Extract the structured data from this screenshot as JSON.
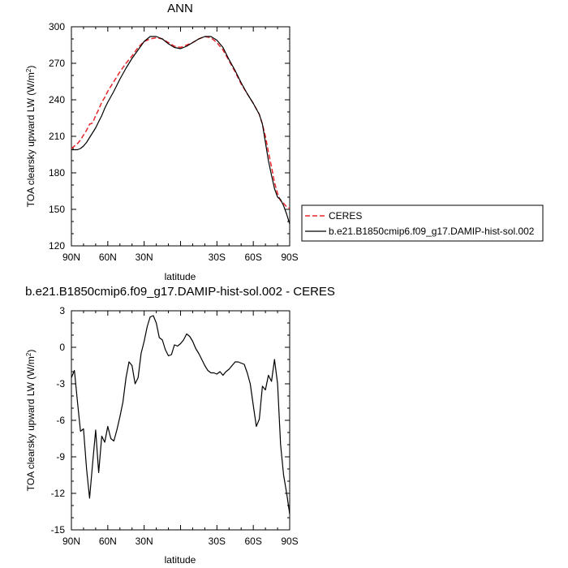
{
  "chart_data": [
    {
      "type": "line",
      "title": "ANN",
      "xlabel": "latitude",
      "ylabel": "TOA clearsky upward LW (W/m",
      "ylabel_sup": "2",
      "ylabel_close": ")",
      "xlim": [
        90,
        -90
      ],
      "ylim": [
        120,
        300
      ],
      "xticks": [
        90,
        60,
        30,
        0,
        -30,
        -60,
        -90
      ],
      "xtick_labels": [
        "90N",
        "60N",
        "30N",
        "",
        "30S",
        "60S",
        "90S"
      ],
      "yticks": [
        120,
        150,
        180,
        210,
        240,
        270,
        300
      ],
      "ytick_labels": [
        "120",
        "150",
        "180",
        "210",
        "240",
        "270",
        "300"
      ],
      "legend": {
        "placement": "right",
        "entries": [
          "CERES",
          "b.e21.B1850cmip6.f09_g17.DAMIP-hist-sol.002"
        ]
      },
      "series": [
        {
          "name": "CERES",
          "color": "#e8262b",
          "dash": true,
          "x": [
            90,
            87.5,
            85,
            82.5,
            80,
            77.5,
            75,
            72.5,
            70,
            67.5,
            65,
            62.5,
            60,
            55,
            50,
            45,
            40,
            35,
            30,
            25,
            20,
            15,
            10,
            5,
            0,
            -5,
            -10,
            -15,
            -20,
            -25,
            -30,
            -35,
            -40,
            -45,
            -50,
            -55,
            -60,
            -65,
            -67.5,
            -70,
            -72.5,
            -75,
            -77.5,
            -80,
            -82.5,
            -85,
            -87.5,
            -90
          ],
          "y": [
            200,
            202,
            204,
            207,
            211,
            215,
            220,
            221,
            227,
            232,
            238,
            242,
            247,
            255,
            263,
            270,
            276,
            283,
            288,
            290,
            291,
            290,
            287,
            284,
            283,
            285,
            287,
            290,
            292,
            291,
            287,
            281,
            272,
            263,
            253,
            245,
            237,
            228,
            220,
            210,
            197,
            185,
            172,
            163,
            157,
            155,
            152,
            151
          ]
        },
        {
          "name": "b.e21.B1850cmip6.f09_g17.DAMIP-hist-sol.002",
          "color": "#000000",
          "dash": false,
          "x": [
            90,
            87.5,
            85,
            82.5,
            80,
            77.5,
            75,
            72.5,
            70,
            67.5,
            65,
            62.5,
            60,
            55,
            50,
            45,
            40,
            35,
            30,
            25,
            20,
            15,
            10,
            5,
            0,
            -5,
            -10,
            -15,
            -20,
            -25,
            -30,
            -35,
            -40,
            -45,
            -50,
            -55,
            -60,
            -65,
            -67.5,
            -70,
            -72.5,
            -75,
            -77.5,
            -80,
            -82.5,
            -85,
            -87.5,
            -90
          ],
          "y": [
            199,
            199,
            199,
            200,
            202,
            205,
            209,
            213,
            217,
            222,
            227,
            233,
            238,
            247,
            257,
            266,
            274,
            281,
            288,
            292,
            292,
            290,
            286,
            283,
            282,
            284,
            287,
            290,
            292,
            292,
            289,
            283,
            273,
            264,
            254,
            245,
            237,
            228,
            220,
            205,
            190,
            178,
            167,
            160,
            158,
            153,
            146,
            138
          ]
        }
      ]
    },
    {
      "type": "line",
      "title": "b.e21.B1850cmip6.f09_g17.DAMIP-hist-sol.002 - CERES",
      "xlabel": "latitude",
      "ylabel": "TOA clearsky upward LW (W/m",
      "ylabel_sup": "2",
      "ylabel_close": ")",
      "xlim": [
        90,
        -90
      ],
      "ylim": [
        -15,
        3
      ],
      "xticks": [
        90,
        60,
        30,
        0,
        -30,
        -60,
        -90
      ],
      "xtick_labels": [
        "90N",
        "60N",
        "30N",
        "",
        "30S",
        "60S",
        "90S"
      ],
      "yticks": [
        -15,
        -12,
        -9,
        -6,
        -3,
        0,
        3
      ],
      "ytick_labels": [
        "-15",
        "-12",
        "-9",
        "-6",
        "-3",
        "0",
        "3"
      ],
      "series": [
        {
          "name": "",
          "color": "#000000",
          "dash": false,
          "x": [
            90,
            87.5,
            85,
            82.5,
            80,
            77.5,
            75,
            72.5,
            70,
            67.5,
            65,
            62.5,
            60,
            57.5,
            55,
            52.5,
            50,
            47.5,
            45,
            42.5,
            40,
            37.5,
            35,
            32.5,
            30,
            27.5,
            25,
            22.5,
            20,
            17.5,
            15,
            12.5,
            10,
            7.5,
            5,
            2.5,
            0,
            -2.5,
            -5,
            -7.5,
            -10,
            -12.5,
            -15,
            -17.5,
            -20,
            -22.5,
            -25,
            -27.5,
            -30,
            -32.5,
            -35,
            -37.5,
            -40,
            -42.5,
            -45,
            -47.5,
            -50,
            -52.5,
            -55,
            -57.5,
            -60,
            -62.5,
            -65,
            -67.5,
            -70,
            -72.5,
            -75,
            -77.5,
            -80,
            -82.5,
            -85,
            -87.5,
            -90
          ],
          "y": [
            -2.5,
            -1.9,
            -4.5,
            -6.9,
            -6.7,
            -10,
            -12.4,
            -9.5,
            -6.8,
            -10.3,
            -7.3,
            -7.8,
            -6.5,
            -7.5,
            -7.7,
            -6.8,
            -5.7,
            -4.5,
            -2.5,
            -1.2,
            -1.5,
            -3.0,
            -2.5,
            -0.5,
            0.5,
            1.7,
            2.5,
            2.6,
            2.0,
            0.8,
            0.6,
            -0.2,
            -0.7,
            -0.6,
            0.2,
            0.1,
            0.3,
            0.6,
            1.1,
            0.9,
            0.5,
            -0.1,
            -0.5,
            -1.0,
            -1.5,
            -1.9,
            -2.1,
            -2.1,
            -2.2,
            -2.0,
            -2.3,
            -2.0,
            -1.8,
            -1.5,
            -1.2,
            -1.2,
            -1.3,
            -1.4,
            -2.1,
            -3.0,
            -4.8,
            -6.5,
            -5.9,
            -3.2,
            -3.5,
            -2.3,
            -2.8,
            -1.0,
            -3.0,
            -8.0,
            -10.5,
            -12.0,
            -13.7
          ]
        }
      ]
    }
  ]
}
